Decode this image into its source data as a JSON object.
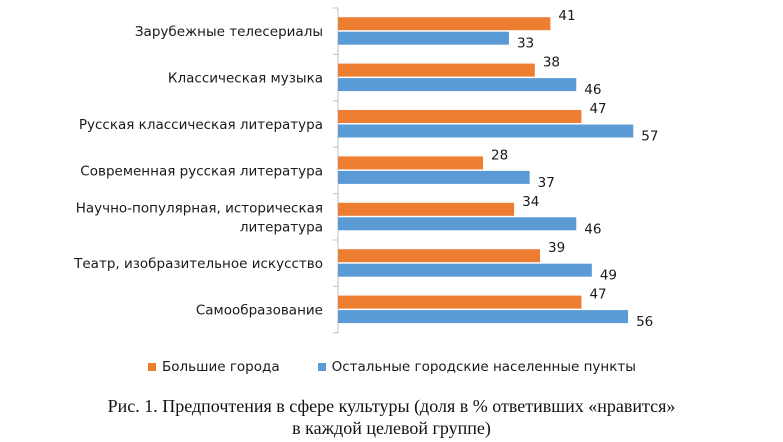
{
  "chart_data": {
    "type": "bar",
    "orientation": "horizontal",
    "categories": [
      [
        "Зарубежные телесериалы"
      ],
      [
        "Классическая музыка"
      ],
      [
        "Русская классическая литература"
      ],
      [
        "Современная русская литература"
      ],
      [
        "Научно-популярная, историческая",
        "литература"
      ],
      [
        "Театр, изобразительное искусство"
      ],
      [
        "Самообразование"
      ]
    ],
    "series": [
      {
        "name": "Большие города",
        "color": "#ED7D31",
        "values": [
          41,
          38,
          47,
          28,
          34,
          39,
          47
        ]
      },
      {
        "name": "Остальные городские населенные пункты",
        "color": "#5B9BD5",
        "values": [
          33,
          46,
          57,
          37,
          46,
          49,
          56
        ]
      }
    ],
    "xlim": [
      0,
      60
    ],
    "grid": false,
    "legend_position": "bottom",
    "data_labels": true
  },
  "caption": {
    "line1": "Рис. 1. Предпочтения в сфере культуры (доля в % ответивших «нравится»",
    "line2": "в каждой целевой группе)"
  }
}
